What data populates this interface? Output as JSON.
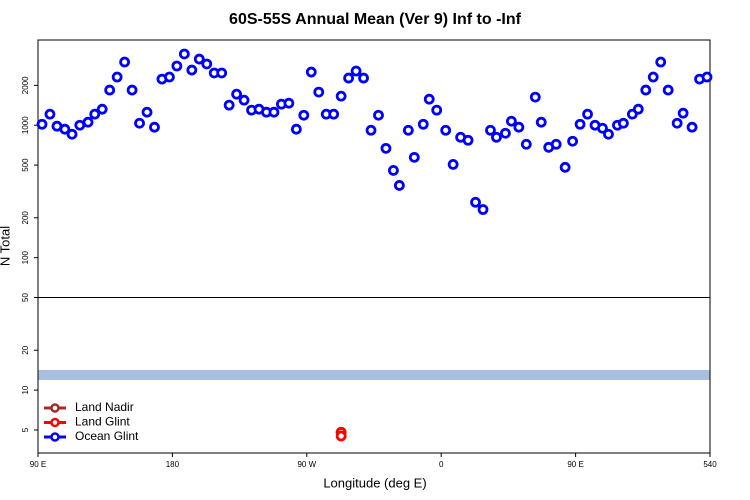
{
  "chart_data": {
    "type": "scatter",
    "title": "60S-55S Annual Mean (Ver 9)   Inf to -Inf",
    "xlabel": "Longitude (deg E)",
    "ylabel": "N Total",
    "xlim": [
      90,
      540
    ],
    "xticks": [
      {
        "value": 90,
        "label": "90 E"
      },
      180,
      {
        "value": 270,
        "label": "90 W"
      },
      {
        "value": 360,
        "label": "0"
      },
      {
        "value": 450,
        "label": "90 E"
      },
      540
    ],
    "ylim": [
      3.35,
      4400
    ],
    "log_y": true,
    "yticks": [
      5,
      10,
      20,
      50,
      100,
      200,
      500,
      1000,
      2000
    ],
    "reference_lines": [
      50
    ],
    "band": {
      "value": 13,
      "color": "#a8bfe0"
    },
    "legend": "lower left",
    "series": [
      {
        "name": "Land Nadir",
        "color": "#a52a2a",
        "x": [
          293
        ],
        "values": [
          4.8
        ]
      },
      {
        "name": "Land Glint",
        "color": "#ff0000",
        "x": [
          293,
          293
        ],
        "values": [
          4.8,
          4.5
        ]
      },
      {
        "name": "Ocean Glint",
        "color": "#0000ff",
        "x": [
          92.7,
          98,
          102.7,
          108,
          112.8,
          118,
          123.5,
          128,
          133,
          138,
          143,
          148,
          153,
          158,
          163,
          168,
          173,
          178,
          183,
          188,
          193,
          198,
          203,
          208,
          213,
          218,
          223,
          228,
          233,
          238,
          243,
          248,
          253,
          258,
          263,
          268,
          273,
          278,
          283,
          288,
          293,
          298,
          303,
          308,
          313,
          318,
          323,
          328,
          332,
          338,
          342,
          348,
          352,
          357,
          363,
          368,
          373,
          378,
          383,
          388,
          393,
          397,
          403,
          407,
          412,
          417,
          423,
          427,
          432,
          437,
          443,
          448,
          453,
          458,
          463,
          468,
          472,
          478,
          482,
          488,
          492,
          497,
          502,
          507,
          512,
          518,
          522,
          528,
          533,
          538
        ],
        "values": [
          1017,
          1212,
          983,
          933,
          855,
          1000,
          1054,
          1212,
          1322,
          1842,
          2311,
          3000,
          1842,
          1035,
          1254,
          966,
          2230,
          2311,
          2800,
          3450,
          2610,
          3160,
          2900,
          2480,
          2480,
          1418,
          1716,
          1546,
          1300,
          1322,
          1254,
          1254,
          1443,
          1467,
          933,
          1190,
          2520,
          1778,
          1212,
          1212,
          1658,
          2270,
          2566,
          2270,
          916,
          1190,
          669,
          456,
          351,
          916,
          572,
          1017,
          1573,
          1300,
          916,
          506,
          811,
          770,
          262,
          231,
          916,
          811,
          870,
          1072,
          966,
          718,
          1630,
          1054,
          681,
          718,
          481,
          757,
          1017,
          1212,
          1000,
          949,
          855,
          1000,
          1035,
          1212,
          1322,
          1842,
          2311,
          3000,
          1842,
          1035,
          1233,
          966,
          2230,
          2311
        ]
      }
    ]
  }
}
